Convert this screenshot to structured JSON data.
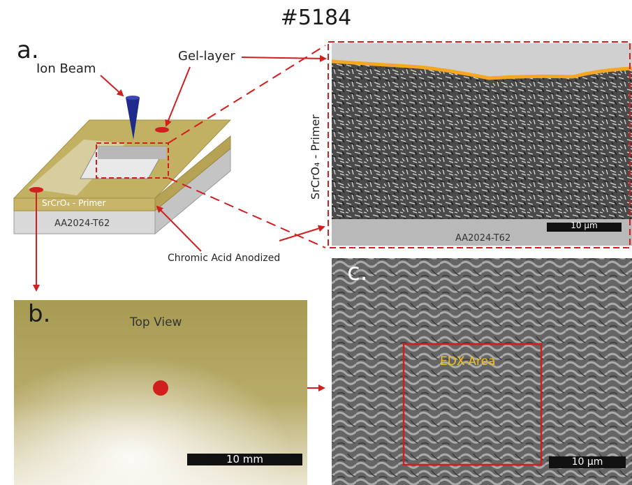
{
  "figure_id": "#5184",
  "panel_a": {
    "letter": "a.",
    "ion_beam": "Ion Beam",
    "gel_layer": "Gel-layer",
    "primer_label": "SrCrO₄ - Primer",
    "substrate_label": "AA2024-T62",
    "anodized_label": "Chromic Acid Anodized"
  },
  "cross_section": {
    "side_label": "SrCrO₄ - Primer",
    "substrate_label": "AA2024-T62",
    "scale_label": "10 µm"
  },
  "panel_b": {
    "letter": "b.",
    "title": "Top View",
    "scale_label": "10 mm"
  },
  "panel_c": {
    "letter": "c.",
    "edx_label": "EDX-Area",
    "scale_label": "10 µm"
  },
  "colors": {
    "arrow_red": "#d11f1f",
    "gel_orange": "#f5a623",
    "edx_text": "#f2c01e",
    "primer_gold": "#c9b56a"
  }
}
